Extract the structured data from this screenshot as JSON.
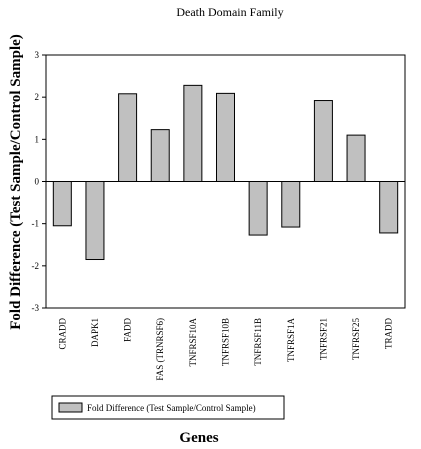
{
  "chart_data": {
    "type": "bar",
    "title": "Death Domain Family",
    "xlabel": "Genes",
    "ylabel": "Fold Difference (Test Sample/Control Sample)",
    "ylim": [
      -3,
      3
    ],
    "yticks": [
      -3,
      -2,
      -1,
      0,
      1,
      2,
      3
    ],
    "grid": false,
    "legend_position": "bottom-left",
    "categories": [
      "CRADD",
      "DAPK1",
      "FADD",
      "FAS (TRNRSF6)",
      "TNFRSF10A",
      "TNFRSF10B",
      "TNFRSF11B",
      "TNFRSF1A",
      "TNFRSF21",
      "TNFRSF25",
      "TRADD"
    ],
    "series": [
      {
        "name": "Fold Difference (Test Sample/Control Sample)",
        "values": [
          -1.05,
          -1.85,
          2.08,
          1.23,
          2.28,
          2.09,
          -1.27,
          -1.08,
          1.92,
          1.1,
          -1.22
        ],
        "color": "#c0c0c0"
      }
    ]
  }
}
